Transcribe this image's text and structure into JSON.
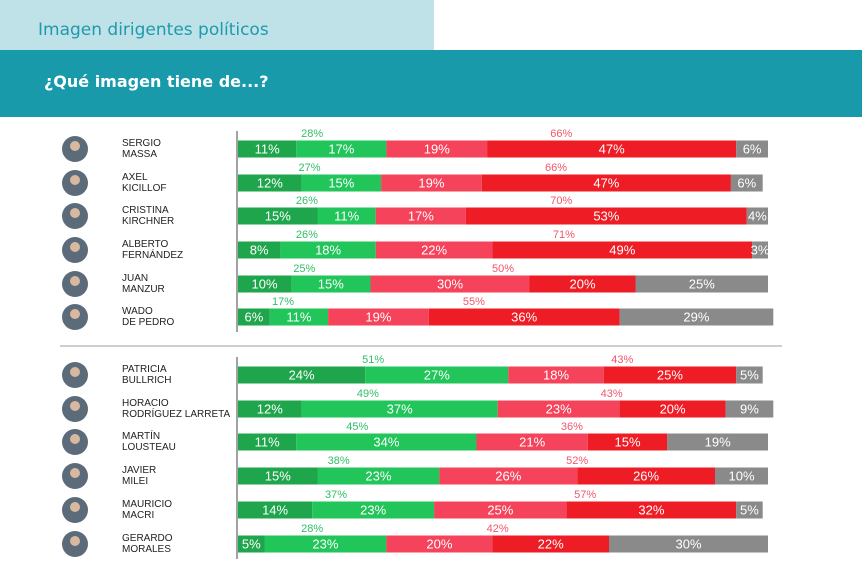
{
  "header": {
    "tab_title": "Imagen dirigentes políticos",
    "question": "¿Qué imagen tiene de...?"
  },
  "colors": {
    "very_positive": "#1fa54b",
    "positive": "#22c55a",
    "somewhat_negative": "#f4435a",
    "very_negative": "#ee1c25",
    "unknown": "#8a8a8a",
    "positive_total_label": "#2fbf66",
    "negative_total_label": "#f2566a"
  },
  "chart_data": {
    "type": "bar",
    "orientation": "horizontal",
    "stacked": true,
    "title": "¿Qué imagen tiene de...?",
    "xlim": [
      0,
      100
    ],
    "unit": "%",
    "categories": [
      [
        "SERGIO",
        "MASSA"
      ],
      [
        "AXEL",
        "KICILLOF"
      ],
      [
        "CRISTINA",
        "KIRCHNER"
      ],
      [
        "ALBERTO",
        "FERNÁNDEZ"
      ],
      [
        "JUAN",
        "MANZUR"
      ],
      [
        "WADO",
        "DE PEDRO"
      ],
      [
        "PATRICIA",
        "BULLRICH"
      ],
      [
        "HORACIO",
        "RODRÍGUEZ LARRETA"
      ],
      [
        "MARTÍN",
        "LOUSTEAU"
      ],
      [
        "JAVIER",
        "MILEI"
      ],
      [
        "MAURICIO",
        "MACRI"
      ],
      [
        "GERARDO",
        "MORALES"
      ]
    ],
    "groups": [
      [
        0,
        5
      ],
      [
        6,
        11
      ]
    ],
    "series": [
      {
        "key": "very_positive",
        "values": [
          11,
          12,
          15,
          8,
          10,
          6,
          24,
          12,
          11,
          15,
          14,
          5
        ]
      },
      {
        "key": "positive",
        "values": [
          17,
          15,
          11,
          18,
          15,
          11,
          27,
          37,
          34,
          23,
          23,
          23
        ]
      },
      {
        "key": "somewhat_negative",
        "values": [
          19,
          19,
          17,
          22,
          30,
          19,
          18,
          23,
          21,
          26,
          25,
          20
        ]
      },
      {
        "key": "very_negative",
        "values": [
          47,
          47,
          53,
          49,
          20,
          36,
          25,
          20,
          15,
          26,
          32,
          22
        ]
      },
      {
        "key": "unknown",
        "values": [
          6,
          6,
          4,
          3,
          25,
          29,
          5,
          9,
          19,
          10,
          5,
          30
        ]
      }
    ],
    "positive_totals": [
      28,
      27,
      26,
      26,
      25,
      17,
      51,
      49,
      45,
      38,
      37,
      28
    ],
    "negative_totals": [
      66,
      66,
      70,
      71,
      50,
      55,
      43,
      43,
      36,
      52,
      57,
      42
    ]
  }
}
